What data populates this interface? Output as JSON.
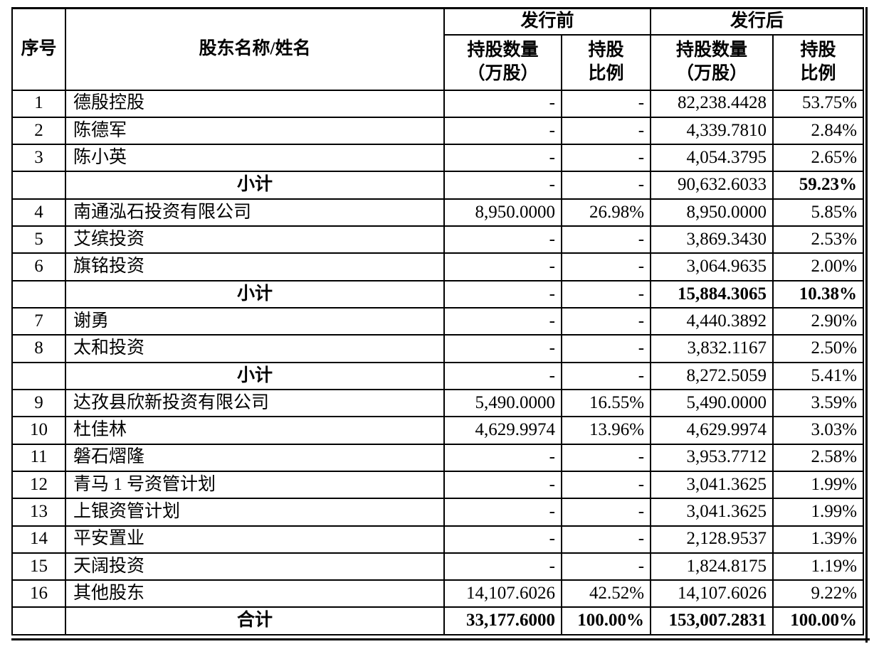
{
  "page": {
    "background_color": "#ffffff",
    "text_color": "#000000",
    "border_color": "#000000"
  },
  "table": {
    "headers": {
      "no": "序号",
      "name": "股东名称/姓名",
      "pre_issue": "发行前",
      "post_issue": "发行后",
      "qty": "持股数量\n（万股）",
      "ratio": "持股\n比例"
    },
    "rows": [
      {
        "type": "data",
        "no": "1",
        "name": "德殷控股",
        "pre_qty": "-",
        "pre_pct": "-",
        "post_qty": "82,238.4428",
        "post_pct": "53.75%",
        "bold_cells": []
      },
      {
        "type": "data",
        "no": "2",
        "name": "陈德军",
        "pre_qty": "-",
        "pre_pct": "-",
        "post_qty": "4,339.7810",
        "post_pct": "2.84%",
        "bold_cells": []
      },
      {
        "type": "data",
        "no": "3",
        "name": "陈小英",
        "pre_qty": "-",
        "pre_pct": "-",
        "post_qty": "4,054.3795",
        "post_pct": "2.65%",
        "bold_cells": []
      },
      {
        "type": "subtotal",
        "no": "",
        "name": "小计",
        "pre_qty": "-",
        "pre_pct": "-",
        "post_qty": "90,632.6033",
        "post_pct": "59.23%",
        "bold_cells": [
          "post_pct"
        ]
      },
      {
        "type": "data",
        "no": "4",
        "name": "南通泓石投资有限公司",
        "pre_qty": "8,950.0000",
        "pre_pct": "26.98%",
        "post_qty": "8,950.0000",
        "post_pct": "5.85%",
        "bold_cells": []
      },
      {
        "type": "data",
        "no": "5",
        "name": "艾缤投资",
        "pre_qty": "-",
        "pre_pct": "-",
        "post_qty": "3,869.3430",
        "post_pct": "2.53%",
        "bold_cells": []
      },
      {
        "type": "data",
        "no": "6",
        "name": "旗铭投资",
        "pre_qty": "-",
        "pre_pct": "-",
        "post_qty": "3,064.9635",
        "post_pct": "2.00%",
        "bold_cells": []
      },
      {
        "type": "subtotal",
        "no": "",
        "name": "小计",
        "pre_qty": "-",
        "pre_pct": "-",
        "post_qty": "15,884.3065",
        "post_pct": "10.38%",
        "bold_cells": [
          "post_qty",
          "post_pct"
        ]
      },
      {
        "type": "data",
        "no": "7",
        "name": "谢勇",
        "pre_qty": "-",
        "pre_pct": "-",
        "post_qty": "4,440.3892",
        "post_pct": "2.90%",
        "bold_cells": []
      },
      {
        "type": "data",
        "no": "8",
        "name": "太和投资",
        "pre_qty": "-",
        "pre_pct": "-",
        "post_qty": "3,832.1167",
        "post_pct": "2.50%",
        "bold_cells": []
      },
      {
        "type": "subtotal",
        "no": "",
        "name": "小计",
        "pre_qty": "-",
        "pre_pct": "-",
        "post_qty": "8,272.5059",
        "post_pct": "5.41%",
        "bold_cells": []
      },
      {
        "type": "data",
        "no": "9",
        "name": "达孜县欣新投资有限公司",
        "pre_qty": "5,490.0000",
        "pre_pct": "16.55%",
        "post_qty": "5,490.0000",
        "post_pct": "3.59%",
        "bold_cells": []
      },
      {
        "type": "data",
        "no": "10",
        "name": "杜佳林",
        "pre_qty": "4,629.9974",
        "pre_pct": "13.96%",
        "post_qty": "4,629.9974",
        "post_pct": "3.03%",
        "bold_cells": []
      },
      {
        "type": "data",
        "no": "11",
        "name": "磐石熠隆",
        "pre_qty": "-",
        "pre_pct": "-",
        "post_qty": "3,953.7712",
        "post_pct": "2.58%",
        "bold_cells": []
      },
      {
        "type": "data",
        "no": "12",
        "name": "青马 1 号资管计划",
        "pre_qty": "-",
        "pre_pct": "-",
        "post_qty": "3,041.3625",
        "post_pct": "1.99%",
        "bold_cells": []
      },
      {
        "type": "data",
        "no": "13",
        "name": "上银资管计划",
        "pre_qty": "-",
        "pre_pct": "-",
        "post_qty": "3,041.3625",
        "post_pct": "1.99%",
        "bold_cells": []
      },
      {
        "type": "data",
        "no": "14",
        "name": "平安置业",
        "pre_qty": "-",
        "pre_pct": "-",
        "post_qty": "2,128.9537",
        "post_pct": "1.39%",
        "bold_cells": []
      },
      {
        "type": "data",
        "no": "15",
        "name": "天阔投资",
        "pre_qty": "-",
        "pre_pct": "-",
        "post_qty": "1,824.8175",
        "post_pct": "1.19%",
        "bold_cells": []
      },
      {
        "type": "data",
        "no": "16",
        "name": "其他股东",
        "pre_qty": "14,107.6026",
        "pre_pct": "42.52%",
        "post_qty": "14,107.6026",
        "post_pct": "9.22%",
        "bold_cells": []
      },
      {
        "type": "total",
        "no": "",
        "name": "合计",
        "pre_qty": "33,177.6000",
        "pre_pct": "100.00%",
        "post_qty": "153,007.2831",
        "post_pct": "100.00%",
        "bold_cells": [
          "pre_qty",
          "pre_pct",
          "post_qty",
          "post_pct"
        ]
      }
    ]
  }
}
